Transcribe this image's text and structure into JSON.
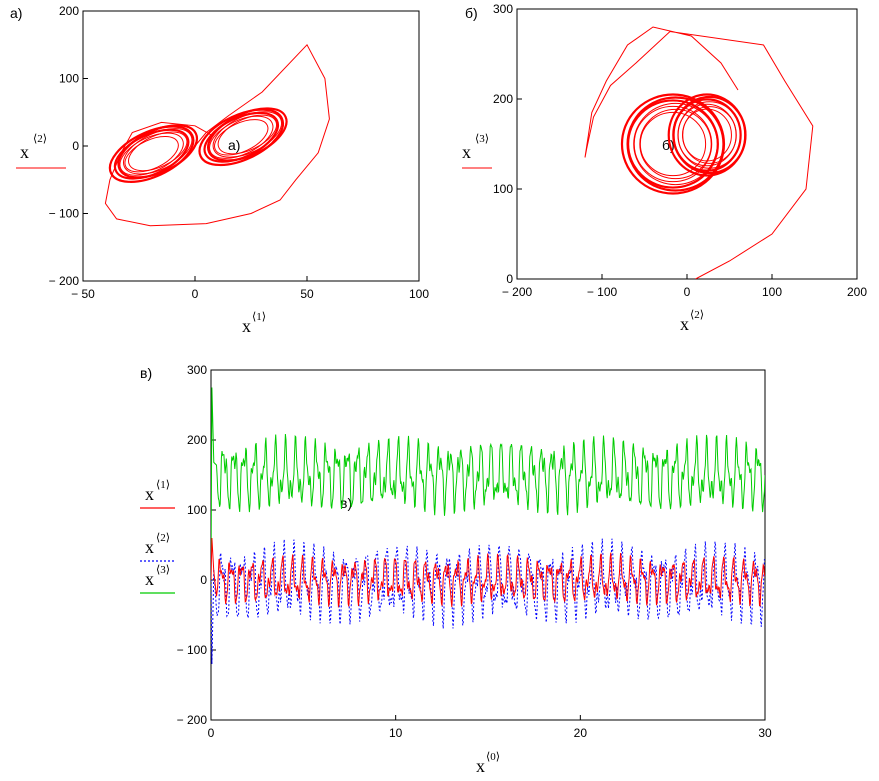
{
  "chart_data": [
    {
      "id": "a",
      "type": "line",
      "panel_label": "а)",
      "inner_label": "а)",
      "xlabel": "x",
      "xlabel_sup": "⟨1⟩",
      "ylabel": "x",
      "ylabel_sup": "⟨2⟩",
      "xlim": [
        -50,
        100
      ],
      "ylim": [
        -200,
        200
      ],
      "x_ticks": [
        -50,
        0,
        50,
        100
      ],
      "x_tick_labels": [
        "− 50",
        "0",
        "50",
        "100"
      ],
      "y_ticks": [
        -200,
        -100,
        0,
        100,
        200
      ],
      "y_tick_labels": [
        "− 200",
        "− 100",
        "0",
        "100",
        "200"
      ],
      "series": [
        {
          "color": "#ff0000",
          "style": "solid",
          "points": [
            [
              0,
              0
            ],
            [
              5,
              20
            ],
            [
              15,
              45
            ],
            [
              30,
              80
            ],
            [
              50,
              150
            ],
            [
              58,
              100
            ],
            [
              60,
              40
            ],
            [
              55,
              -10
            ],
            [
              45,
              -50
            ],
            [
              38,
              -80
            ],
            [
              25,
              -100
            ],
            [
              5,
              -115
            ],
            [
              -20,
              -118
            ],
            [
              -35,
              -108
            ],
            [
              -40,
              -85
            ],
            [
              -38,
              -50
            ],
            [
              -33,
              -10
            ],
            [
              -28,
              20
            ],
            [
              -15,
              35
            ],
            [
              0,
              30
            ],
            [
              8,
              15
            ]
          ],
          "attractor_a": {
            "cx": -18,
            "cy": -10,
            "rx": 20,
            "ry": 33
          },
          "attractor_b": {
            "cx": 22,
            "cy": 15,
            "rx": 20,
            "ry": 33
          }
        }
      ]
    },
    {
      "id": "b",
      "type": "line",
      "panel_label": "б)",
      "inner_label": "б)",
      "xlabel": "x",
      "xlabel_sup": "⟨2⟩",
      "ylabel": "x",
      "ylabel_sup": "⟨3⟩",
      "xlim": [
        -200,
        200
      ],
      "ylim": [
        0,
        300
      ],
      "x_ticks": [
        -200,
        -100,
        0,
        100,
        200
      ],
      "x_tick_labels": [
        "− 200",
        "− 100",
        "0",
        "100",
        "200"
      ],
      "y_ticks": [
        0,
        100,
        200,
        300
      ],
      "y_tick_labels": [
        "0",
        "100",
        "200",
        "300"
      ],
      "series": [
        {
          "color": "#ff0000",
          "style": "solid",
          "points": [
            [
              10,
              0
            ],
            [
              50,
              20
            ],
            [
              100,
              50
            ],
            [
              140,
              100
            ],
            [
              148,
              170
            ],
            [
              115,
              220
            ],
            [
              90,
              260
            ],
            [
              -20,
              275
            ],
            [
              -60,
              240
            ],
            [
              -90,
              215
            ],
            [
              -110,
              180
            ],
            [
              -118,
              145
            ],
            [
              -120,
              135
            ],
            [
              -112,
              185
            ],
            [
              -95,
              220
            ],
            [
              -70,
              260
            ],
            [
              -40,
              280
            ],
            [
              5,
              270
            ],
            [
              40,
              240
            ],
            [
              60,
              210
            ]
          ],
          "attractor_a": {
            "cx": -15,
            "cy": 150,
            "rx": 60,
            "ry": 55
          },
          "attractor_b": {
            "cx": 25,
            "cy": 160,
            "rx": 45,
            "ry": 45
          }
        }
      ]
    },
    {
      "id": "c",
      "type": "line",
      "panel_label": "в)",
      "inner_label": "в)",
      "xlabel": "x",
      "xlabel_sup": "⟨0⟩",
      "xlim": [
        0,
        30
      ],
      "ylim": [
        -200,
        300
      ],
      "x_ticks": [
        0,
        10,
        20,
        30
      ],
      "x_tick_labels": [
        "0",
        "10",
        "20",
        "30"
      ],
      "y_ticks": [
        -200,
        -100,
        0,
        100,
        200,
        300
      ],
      "y_tick_labels": [
        "− 200",
        "− 100",
        "0",
        "100",
        "200",
        "300"
      ],
      "legend": [
        {
          "label": "x",
          "sup": "⟨1⟩",
          "color": "#ff0000",
          "style": "solid"
        },
        {
          "label": "x",
          "sup": "⟨2⟩",
          "color": "#0000ff",
          "style": "dotted"
        },
        {
          "label": "x",
          "sup": "⟨3⟩",
          "color": "#00cc00",
          "style": "solid"
        }
      ],
      "series": [
        {
          "color": "#00cc00",
          "style": "solid",
          "range": [
            90,
            210
          ],
          "initial_peak": 275
        },
        {
          "color": "#0000ff",
          "style": "dotted",
          "range": [
            -70,
            60
          ],
          "initial_peak": -120
        },
        {
          "color": "#ff0000",
          "style": "solid",
          "range": [
            -40,
            40
          ],
          "initial_peak": 60
        }
      ]
    }
  ]
}
